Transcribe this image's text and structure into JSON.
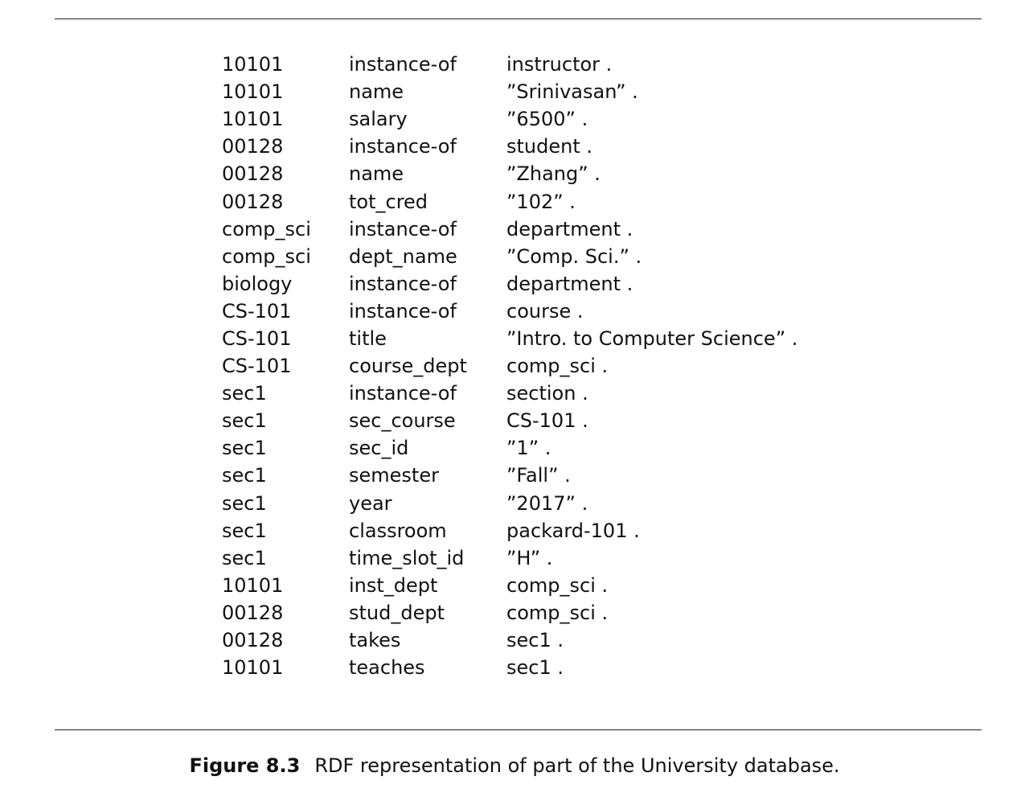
{
  "figure": {
    "label": "Figure 8.3",
    "caption": "RDF representation of part of the University database."
  },
  "triples": [
    {
      "subject": "10101",
      "predicate": "instance-of",
      "object": "instructor ."
    },
    {
      "subject": "10101",
      "predicate": "name",
      "object": "”Srinivasan” ."
    },
    {
      "subject": "10101",
      "predicate": "salary",
      "object": "”6500” ."
    },
    {
      "subject": "00128",
      "predicate": "instance-of",
      "object": "student ."
    },
    {
      "subject": "00128",
      "predicate": "name",
      "object": "”Zhang” ."
    },
    {
      "subject": "00128",
      "predicate": "tot_cred",
      "object": "”102” ."
    },
    {
      "subject": "comp_sci",
      "predicate": "instance-of",
      "object": "department ."
    },
    {
      "subject": "comp_sci",
      "predicate": "dept_name",
      "object": "”Comp. Sci.” ."
    },
    {
      "subject": "biology",
      "predicate": "instance-of",
      "object": "department ."
    },
    {
      "subject": "CS-101",
      "predicate": "instance-of",
      "object": "course ."
    },
    {
      "subject": "CS-101",
      "predicate": "title",
      "object": "”Intro. to Computer Science” ."
    },
    {
      "subject": "CS-101",
      "predicate": "course_dept",
      "object": "comp_sci ."
    },
    {
      "subject": "sec1",
      "predicate": "instance-of",
      "object": "section ."
    },
    {
      "subject": "sec1",
      "predicate": "sec_course",
      "object": "CS-101 ."
    },
    {
      "subject": "sec1",
      "predicate": "sec_id",
      "object": "”1” ."
    },
    {
      "subject": "sec1",
      "predicate": "semester",
      "object": "”Fall” ."
    },
    {
      "subject": "sec1",
      "predicate": "year",
      "object": "”2017” ."
    },
    {
      "subject": "sec1",
      "predicate": "classroom",
      "object": "packard-101 ."
    },
    {
      "subject": "sec1",
      "predicate": "time_slot_id",
      "object": "”H” ."
    },
    {
      "subject": "10101",
      "predicate": "inst_dept",
      "object": "comp_sci ."
    },
    {
      "subject": "00128",
      "predicate": "stud_dept",
      "object": "comp_sci ."
    },
    {
      "subject": "00128",
      "predicate": "takes",
      "object": "sec1 ."
    },
    {
      "subject": "10101",
      "predicate": "teaches",
      "object": "sec1 ."
    }
  ]
}
